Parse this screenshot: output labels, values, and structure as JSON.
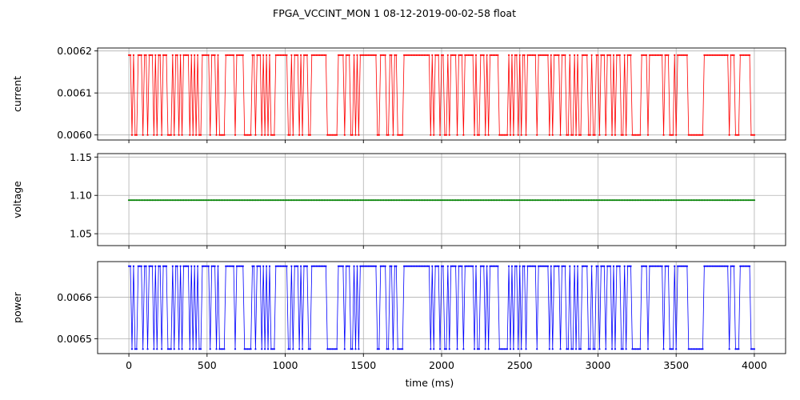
{
  "figure": {
    "title": "FPGA_VCCINT_MON   1   08-12-2019-00-02-58   float"
  },
  "chart_data": [
    {
      "type": "line",
      "ylabel": "current",
      "color": "#ff0000",
      "xlim": [
        -200,
        4200
      ],
      "ylim": [
        0.005988,
        0.006207
      ],
      "yticks": [
        0.006,
        0.0061,
        0.0062
      ],
      "ytick_labels": [
        "0.0060",
        "0.0061",
        "0.0062"
      ],
      "grid": true,
      "marker": "dot",
      "series": [
        {
          "x_start": 0,
          "x_end": 4000,
          "x_step": 10,
          "low": 0.006,
          "high": 0.00619,
          "pattern": "HHLHLLHHHLHHLHHHLHLHHLHHHLLLHLHHLHLHHHHLHLHLHLLHHHHHLHHHLHLLLLHHHHHHLHHHHHLLLLLHHLHHHLHLHLHLLLHHHHHHHHLLHLHHHLHLHHHLLHHHHHHHHHHLLLLLLLHHHHLHHHLLHLHLHHHHHHHHHHHLLHHHHLLHHLHHLLLLHHHHHHHHHHHHHHHHHLHLHHHLHHLLHLHHHHLHHHLHHHHHHLHLLHHHLHLHHHHHHLLLLLLHLHLHHLHLHHLHHHHHHLHHHHHHHLHLHHHHLHHHLLHLLHLHLLHHHHLLHLLHHLHHHLHHHLHLHHHLLHLHHHLLLLLLHHHHLHHHHHHHHHLHHHLLLHLHHHHHHHLLLLLLLLLLHHHHHHHHHHHHHHHHLHHHLLLHHHHHHHLLLHLHHHHHLLLLHHHHLHLHHHHLHHHLHHHHHHLHHHLHHHHHHLHLLL"
        }
      ]
    },
    {
      "type": "line",
      "ylabel": "voltage",
      "color": "#008000",
      "xlim": [
        -200,
        4200
      ],
      "ylim": [
        1.0345,
        1.1545
      ],
      "yticks": [
        1.05,
        1.1,
        1.15
      ],
      "ytick_labels": [
        "1.05",
        "1.10",
        "1.15"
      ],
      "grid": true,
      "marker": "dot",
      "series": [
        {
          "x_start": 0,
          "x_end": 4000,
          "x_step": 10,
          "constant": 1.0938
        }
      ]
    },
    {
      "type": "line",
      "ylabel": "power",
      "xlabel": "time (ms)",
      "color": "#0000ff",
      "xlim": [
        -200,
        4200
      ],
      "ylim": [
        0.006464,
        0.006686
      ],
      "yticks": [
        0.0065,
        0.0066
      ],
      "ytick_labels": [
        "0.0065",
        "0.0066"
      ],
      "xticks": [
        0,
        500,
        1000,
        1500,
        2000,
        2500,
        3000,
        3500,
        4000
      ],
      "xtick_labels": [
        "0",
        "500",
        "1000",
        "1500",
        "2000",
        "2500",
        "3000",
        "3500",
        "4000"
      ],
      "grid": true,
      "marker": "dot",
      "series": [
        {
          "x_start": 0,
          "x_end": 4000,
          "x_step": 10,
          "low": 0.006475,
          "high": 0.006675,
          "pattern": "HHLHLLHHHLHHLHHHLHLHHLHHHLLLHLHHLHLHHHHLHLHLHLLHHHHHLHHHLHLLLLHHHHHHLHHHHHLLLLLHHLHHHLHLHLHLLLHHHHHHHHLLHLHHHLHLHHHLLHHHHHHHHHHLLLLLLLHHHHLHHHLLHLHLHHHHHHHHHHHLLHHHHLLHHLHHLLLLHHHHHHHHHHHHHHHHHLHLHHHLHHLLHLHHHHLHHHLHHHHHHLHLLHHHLHLHHHHHHLLLLLLHLHLHHLHLHHLHHHHHHLHHHHHHHLHLHHHHLHHHLLHLLHLHLLHHHHLLHLLHHLHHHLHHHLHLHHHLLHLHHHLLLLLLHHHHLHHHHHHHHHLHHHLLLHLHHHHHHHLLLLLLLLLLHHHHHHHHHHHHHHHHLHHHLLLHHHHHHHLLLHLHHHHHLLLLHHHHLHLHHHHLHHHLHHHHHHLHHHLHHHHHHLHLLL"
        }
      ]
    }
  ]
}
